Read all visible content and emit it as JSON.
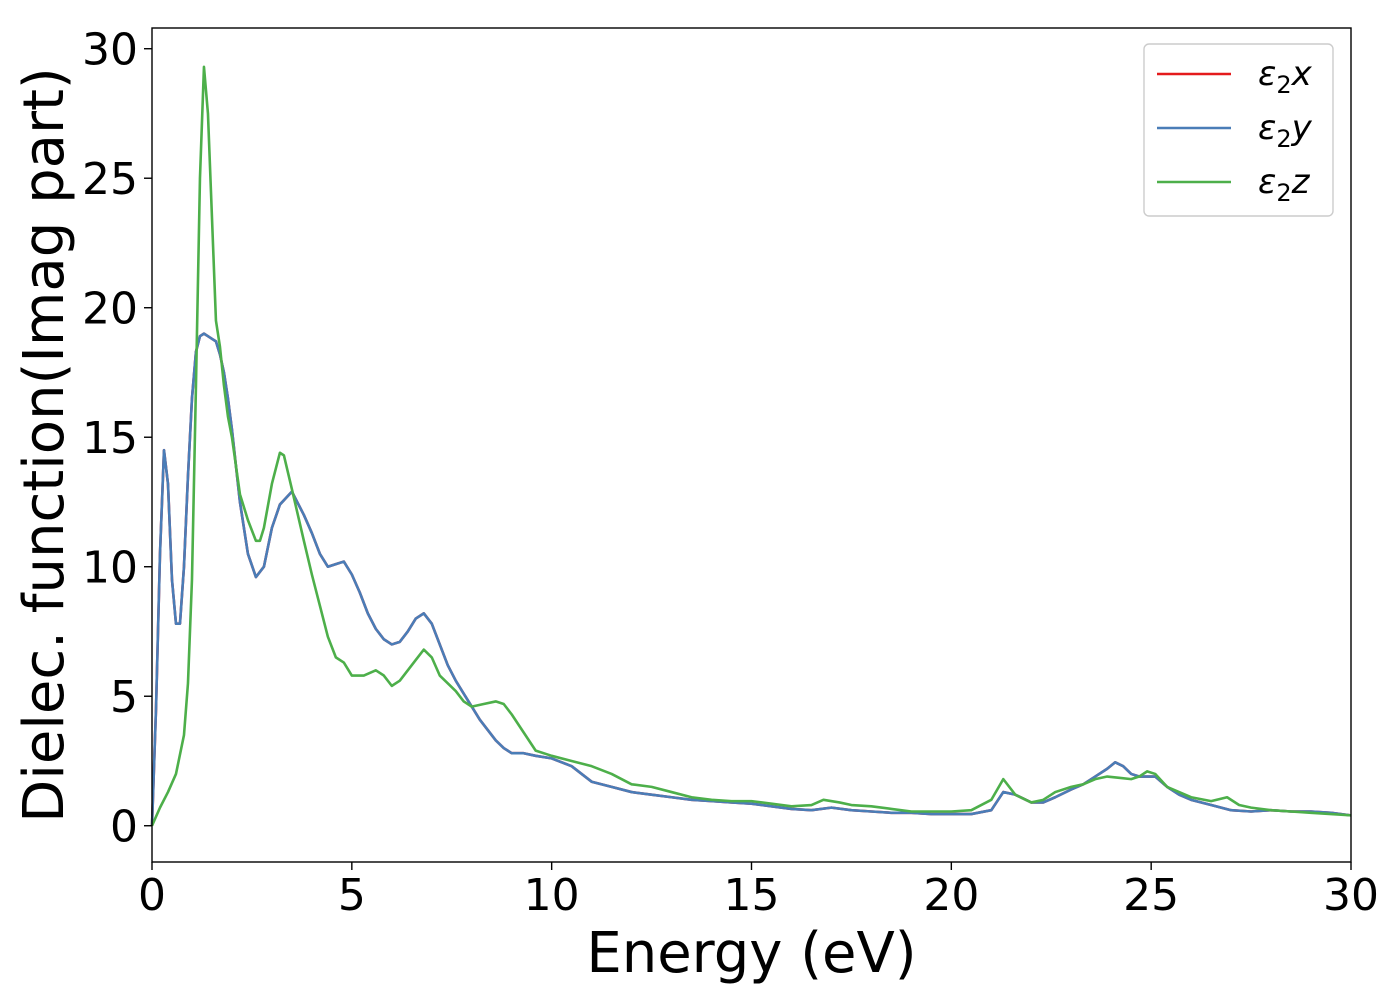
{
  "chart_data": {
    "type": "line",
    "title": "",
    "xlabel": "Energy (eV)",
    "ylabel": "Dielec. function(Imag part)",
    "xlim": [
      0,
      30
    ],
    "ylim": [
      -1.4,
      30.8
    ],
    "xticks": [
      0,
      5,
      10,
      15,
      20,
      25,
      30
    ],
    "yticks": [
      0,
      5,
      10,
      15,
      20,
      25,
      30
    ],
    "grid": false,
    "legend_position": "top-right",
    "series": [
      {
        "name": "ε₂x",
        "legend_base": "ε",
        "legend_sub": "2",
        "legend_var": "x",
        "color": "#e41a1c",
        "x": [
          0,
          0.1,
          0.2,
          0.3,
          0.4,
          0.5,
          0.6,
          0.7,
          0.8,
          0.9,
          1.0,
          1.1,
          1.2,
          1.3,
          1.4,
          1.5,
          1.6,
          1.7,
          1.8,
          1.9,
          2.0,
          2.2,
          2.4,
          2.6,
          2.8,
          3.0,
          3.2,
          3.5,
          3.8,
          4.0,
          4.2,
          4.4,
          4.6,
          4.8,
          5.0,
          5.2,
          5.4,
          5.6,
          5.8,
          6.0,
          6.2,
          6.4,
          6.6,
          6.8,
          7.0,
          7.2,
          7.4,
          7.6,
          7.8,
          8.0,
          8.2,
          8.4,
          8.6,
          8.8,
          9.0,
          9.3,
          9.6,
          10.0,
          10.5,
          11.0,
          11.5,
          12.0,
          12.5,
          13.0,
          13.5,
          14.0,
          14.5,
          15.0,
          15.5,
          16.0,
          16.5,
          17.0,
          17.5,
          18.0,
          18.5,
          19.0,
          19.5,
          20.0,
          20.5,
          21.0,
          21.3,
          21.6,
          22.0,
          22.3,
          22.6,
          23.0,
          23.3,
          23.6,
          23.9,
          24.1,
          24.3,
          24.5,
          24.7,
          24.9,
          25.1,
          25.4,
          25.7,
          26.0,
          26.5,
          27.0,
          27.5,
          28.0,
          28.5,
          29.0,
          29.5,
          30.0
        ],
        "y": [
          0,
          4.5,
          10.5,
          14.5,
          13.2,
          9.5,
          7.8,
          7.8,
          10.0,
          13.5,
          16.5,
          18.3,
          18.9,
          19.0,
          18.9,
          18.8,
          18.7,
          18.2,
          17.5,
          16.5,
          15.3,
          12.5,
          10.5,
          9.6,
          10.0,
          11.5,
          12.4,
          12.9,
          12.0,
          11.3,
          10.5,
          10.0,
          10.1,
          10.2,
          9.7,
          9.0,
          8.2,
          7.6,
          7.2,
          7.0,
          7.1,
          7.5,
          8.0,
          8.2,
          7.8,
          7.0,
          6.2,
          5.6,
          5.1,
          4.6,
          4.1,
          3.7,
          3.3,
          3.0,
          2.8,
          2.8,
          2.7,
          2.6,
          2.3,
          1.7,
          1.5,
          1.3,
          1.2,
          1.1,
          1.0,
          0.95,
          0.9,
          0.85,
          0.75,
          0.65,
          0.6,
          0.7,
          0.6,
          0.55,
          0.5,
          0.5,
          0.45,
          0.45,
          0.45,
          0.6,
          1.3,
          1.2,
          0.9,
          0.9,
          1.1,
          1.4,
          1.6,
          1.9,
          2.2,
          2.45,
          2.3,
          2.0,
          1.9,
          1.9,
          1.9,
          1.5,
          1.2,
          1.0,
          0.8,
          0.6,
          0.55,
          0.6,
          0.55,
          0.55,
          0.5,
          0.4
        ]
      },
      {
        "name": "ε₂y",
        "legend_base": "ε",
        "legend_sub": "2",
        "legend_var": "y",
        "color": "#4a7db7",
        "x": [
          0,
          0.1,
          0.2,
          0.3,
          0.4,
          0.5,
          0.6,
          0.7,
          0.8,
          0.9,
          1.0,
          1.1,
          1.2,
          1.3,
          1.4,
          1.5,
          1.6,
          1.7,
          1.8,
          1.9,
          2.0,
          2.2,
          2.4,
          2.6,
          2.8,
          3.0,
          3.2,
          3.5,
          3.8,
          4.0,
          4.2,
          4.4,
          4.6,
          4.8,
          5.0,
          5.2,
          5.4,
          5.6,
          5.8,
          6.0,
          6.2,
          6.4,
          6.6,
          6.8,
          7.0,
          7.2,
          7.4,
          7.6,
          7.8,
          8.0,
          8.2,
          8.4,
          8.6,
          8.8,
          9.0,
          9.3,
          9.6,
          10.0,
          10.5,
          11.0,
          11.5,
          12.0,
          12.5,
          13.0,
          13.5,
          14.0,
          14.5,
          15.0,
          15.5,
          16.0,
          16.5,
          17.0,
          17.5,
          18.0,
          18.5,
          19.0,
          19.5,
          20.0,
          20.5,
          21.0,
          21.3,
          21.6,
          22.0,
          22.3,
          22.6,
          23.0,
          23.3,
          23.6,
          23.9,
          24.1,
          24.3,
          24.5,
          24.7,
          24.9,
          25.1,
          25.4,
          25.7,
          26.0,
          26.5,
          27.0,
          27.5,
          28.0,
          28.5,
          29.0,
          29.5,
          30.0
        ],
        "y": [
          0,
          4.5,
          10.5,
          14.5,
          13.2,
          9.5,
          7.8,
          7.8,
          10.0,
          13.5,
          16.5,
          18.3,
          18.9,
          19.0,
          18.9,
          18.8,
          18.7,
          18.2,
          17.5,
          16.5,
          15.3,
          12.5,
          10.5,
          9.6,
          10.0,
          11.5,
          12.4,
          12.9,
          12.0,
          11.3,
          10.5,
          10.0,
          10.1,
          10.2,
          9.7,
          9.0,
          8.2,
          7.6,
          7.2,
          7.0,
          7.1,
          7.5,
          8.0,
          8.2,
          7.8,
          7.0,
          6.2,
          5.6,
          5.1,
          4.6,
          4.1,
          3.7,
          3.3,
          3.0,
          2.8,
          2.8,
          2.7,
          2.6,
          2.3,
          1.7,
          1.5,
          1.3,
          1.2,
          1.1,
          1.0,
          0.95,
          0.9,
          0.85,
          0.75,
          0.65,
          0.6,
          0.7,
          0.6,
          0.55,
          0.5,
          0.5,
          0.45,
          0.45,
          0.45,
          0.6,
          1.3,
          1.2,
          0.9,
          0.9,
          1.1,
          1.4,
          1.6,
          1.9,
          2.2,
          2.45,
          2.3,
          2.0,
          1.9,
          1.9,
          1.9,
          1.5,
          1.2,
          1.0,
          0.8,
          0.6,
          0.55,
          0.6,
          0.55,
          0.55,
          0.5,
          0.4
        ]
      },
      {
        "name": "ε₂z",
        "legend_base": "ε",
        "legend_sub": "2",
        "legend_var": "z",
        "color": "#4daf4a",
        "x": [
          0,
          0.2,
          0.4,
          0.6,
          0.8,
          0.9,
          1.0,
          1.1,
          1.2,
          1.3,
          1.4,
          1.5,
          1.6,
          1.7,
          1.8,
          1.9,
          2.0,
          2.2,
          2.4,
          2.6,
          2.7,
          2.8,
          3.0,
          3.2,
          3.3,
          3.5,
          3.8,
          4.0,
          4.2,
          4.4,
          4.6,
          4.8,
          5.0,
          5.3,
          5.6,
          5.8,
          6.0,
          6.2,
          6.4,
          6.6,
          6.8,
          7.0,
          7.2,
          7.4,
          7.6,
          7.8,
          8.0,
          8.3,
          8.6,
          8.8,
          9.0,
          9.3,
          9.6,
          10.0,
          10.5,
          11.0,
          11.5,
          12.0,
          12.5,
          13.0,
          13.5,
          14.0,
          14.5,
          15.0,
          15.5,
          16.0,
          16.5,
          16.8,
          17.2,
          17.5,
          18.0,
          18.5,
          19.0,
          19.5,
          20.0,
          20.5,
          21.0,
          21.3,
          21.6,
          22.0,
          22.3,
          22.6,
          23.0,
          23.3,
          23.6,
          23.9,
          24.2,
          24.5,
          24.7,
          24.9,
          25.1,
          25.4,
          25.7,
          26.0,
          26.5,
          26.9,
          27.2,
          27.5,
          28.0,
          28.5,
          29.0,
          29.5,
          30.0
        ],
        "y": [
          0,
          0.7,
          1.3,
          2.0,
          3.5,
          5.5,
          9.5,
          17.0,
          25.0,
          29.3,
          27.5,
          23.5,
          19.5,
          18.5,
          17.0,
          15.8,
          15.0,
          12.8,
          11.8,
          11.0,
          11.0,
          11.5,
          13.2,
          14.4,
          14.3,
          13.0,
          11.0,
          9.7,
          8.5,
          7.3,
          6.5,
          6.3,
          5.8,
          5.8,
          6.0,
          5.8,
          5.4,
          5.6,
          6.0,
          6.4,
          6.8,
          6.5,
          5.8,
          5.5,
          5.2,
          4.8,
          4.6,
          4.7,
          4.8,
          4.7,
          4.3,
          3.6,
          2.9,
          2.7,
          2.5,
          2.3,
          2.0,
          1.6,
          1.5,
          1.3,
          1.1,
          1.0,
          0.95,
          0.95,
          0.85,
          0.75,
          0.8,
          1.0,
          0.9,
          0.8,
          0.75,
          0.65,
          0.55,
          0.55,
          0.55,
          0.6,
          1.0,
          1.8,
          1.2,
          0.9,
          1.0,
          1.3,
          1.5,
          1.6,
          1.8,
          1.9,
          1.85,
          1.8,
          1.9,
          2.1,
          2.0,
          1.5,
          1.3,
          1.1,
          0.95,
          1.1,
          0.8,
          0.7,
          0.6,
          0.55,
          0.5,
          0.45,
          0.4
        ]
      }
    ]
  }
}
